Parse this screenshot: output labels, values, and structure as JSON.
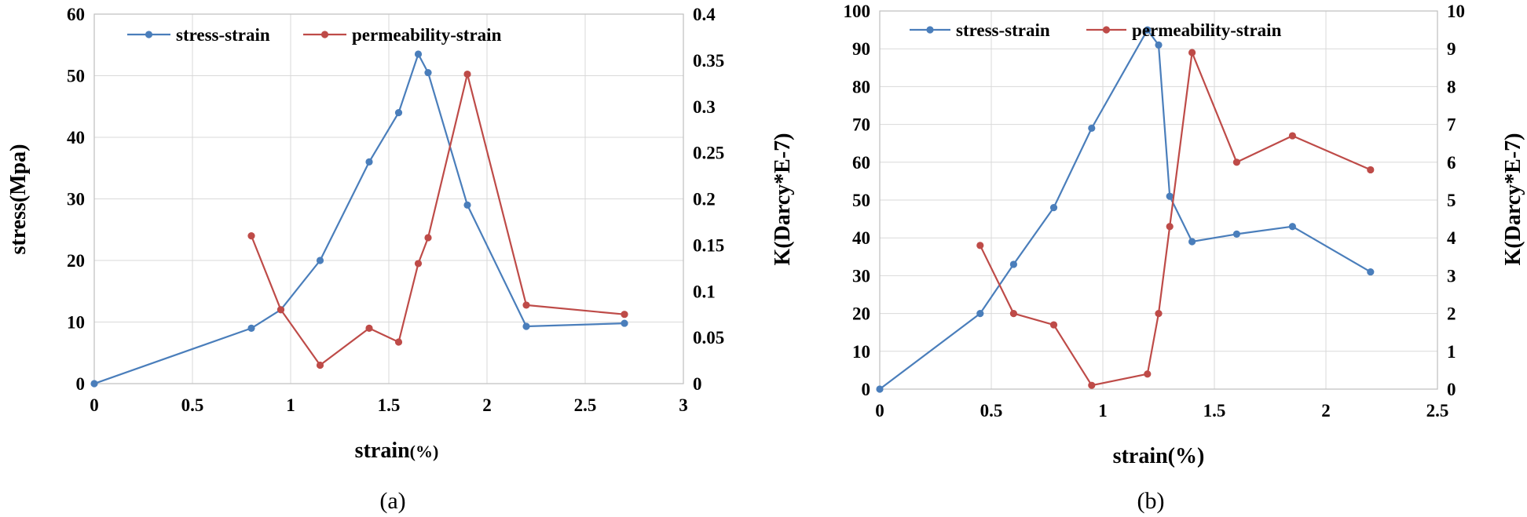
{
  "colors": {
    "stress": "#4a7ebb",
    "permeability": "#be4b48"
  },
  "chart_data": [
    {
      "type": "line",
      "caption": "(a)",
      "xlabel_main": "strain",
      "xlabel_unit": "(%)",
      "ylabel": "stress(Mpa)",
      "y2label": "K(Darcy*E-7)",
      "xlim": [
        0,
        3
      ],
      "ylim": [
        0,
        60
      ],
      "y2lim": [
        0,
        0.4
      ],
      "xticks": [
        "0",
        "0.5",
        "1",
        "1.5",
        "2",
        "2.5",
        "3"
      ],
      "yticks": [
        "0",
        "10",
        "20",
        "30",
        "40",
        "50",
        "60"
      ],
      "y2ticks": [
        "0",
        "0.05",
        "0.1",
        "0.15",
        "0.2",
        "0.25",
        "0.3",
        "0.35",
        "0.4"
      ],
      "legend": [
        "stress-strain",
        "permeability-strain"
      ],
      "series": [
        {
          "name": "stress-strain",
          "axis": "left",
          "x": [
            0,
            0.8,
            0.95,
            1.15,
            1.4,
            1.55,
            1.65,
            1.7,
            1.9,
            2.2,
            2.7
          ],
          "y": [
            0,
            9,
            12,
            20,
            36,
            44,
            53.5,
            50.5,
            29,
            9.3,
            9.8
          ]
        },
        {
          "name": "permeability-strain",
          "axis": "right",
          "x": [
            0.8,
            0.95,
            1.15,
            1.4,
            1.55,
            1.65,
            1.7,
            1.9,
            2.2,
            2.7
          ],
          "y": [
            0.16,
            0.08,
            0.02,
            0.06,
            0.045,
            0.13,
            0.158,
            0.335,
            0.085,
            0.075
          ]
        }
      ]
    },
    {
      "type": "line",
      "caption": "(b)",
      "xlabel_main": "strain(%)",
      "xlabel_unit": "",
      "ylabel": "",
      "y2label": "K(Darcy*E-7)",
      "xlim": [
        0,
        2.5
      ],
      "ylim": [
        0,
        100
      ],
      "y2lim": [
        0,
        10
      ],
      "xticks": [
        "0",
        "0.5",
        "1",
        "1.5",
        "2",
        "2.5"
      ],
      "yticks": [
        "0",
        "10",
        "20",
        "30",
        "40",
        "50",
        "60",
        "70",
        "80",
        "90",
        "100"
      ],
      "y2ticks": [
        "0",
        "1",
        "2",
        "3",
        "4",
        "5",
        "6",
        "7",
        "8",
        "9",
        "10"
      ],
      "legend": [
        "stress-strain",
        "permeability-strain"
      ],
      "series": [
        {
          "name": "stress-strain",
          "axis": "left",
          "x": [
            0,
            0.45,
            0.6,
            0.78,
            0.95,
            1.2,
            1.25,
            1.3,
            1.4,
            1.6,
            1.85,
            2.2
          ],
          "y": [
            0,
            20,
            33,
            48,
            69,
            95,
            91,
            51,
            39,
            41,
            43,
            31
          ]
        },
        {
          "name": "permeability-strain",
          "axis": "right",
          "x": [
            0.45,
            0.6,
            0.78,
            0.95,
            1.2,
            1.25,
            1.3,
            1.4,
            1.6,
            1.85,
            2.2
          ],
          "y": [
            3.8,
            2.0,
            1.7,
            0.1,
            0.4,
            2.0,
            4.3,
            8.9,
            6.0,
            6.7,
            5.8
          ]
        }
      ]
    }
  ]
}
